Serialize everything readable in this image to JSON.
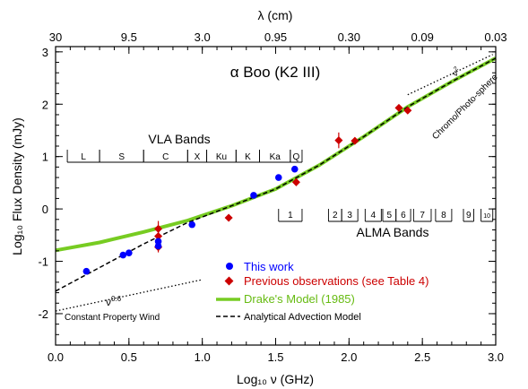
{
  "chart_data": {
    "type": "scatter",
    "title": "α Boo (K2 III)",
    "xlabel": "Log₁₀ ν (GHz)",
    "ylabel": "Log₁₀ Flux Density (mJy)",
    "top_axis_label": "λ (cm)",
    "xlim": [
      0.0,
      3.0
    ],
    "ylim": [
      -2.6,
      3.1
    ],
    "x_ticks": [
      0.0,
      0.5,
      1.0,
      1.5,
      2.0,
      2.5,
      3.0
    ],
    "x_tick_labels": [
      "0.0",
      "0.5",
      "1.0",
      "1.5",
      "2.0",
      "2.5",
      "3.0"
    ],
    "y_ticks": [
      -2,
      -1,
      0,
      1,
      2,
      3
    ],
    "y_tick_labels": [
      "-2",
      "-1",
      "0",
      "1",
      "2",
      "3"
    ],
    "top_ticks": [
      0.0,
      0.5,
      1.0,
      1.5,
      2.0,
      2.5,
      3.0
    ],
    "top_tick_labels": [
      "30",
      "9.5",
      "3.0",
      "0.95",
      "0.30",
      "0.09",
      "0.03"
    ],
    "series": [
      {
        "name": "This work",
        "kind": "points",
        "color": "#0000ff",
        "marker": "circle",
        "points": [
          [
            0.21,
            -1.19
          ],
          [
            0.46,
            -0.88
          ],
          [
            0.5,
            -0.84
          ],
          [
            0.7,
            -0.71
          ],
          [
            0.7,
            -0.62
          ],
          [
            0.93,
            -0.3
          ],
          [
            1.35,
            0.26
          ],
          [
            1.52,
            0.6
          ],
          [
            1.63,
            0.76
          ]
        ]
      },
      {
        "name": "Previous observations (see Table 4)",
        "kind": "points",
        "color": "#cc0000",
        "marker": "diamond",
        "points": [
          [
            0.7,
            -0.38
          ],
          [
            0.7,
            -0.52
          ],
          [
            0.7,
            -0.73
          ],
          [
            1.18,
            -0.17
          ],
          [
            1.64,
            0.51
          ],
          [
            1.93,
            1.31
          ],
          [
            2.04,
            1.3
          ],
          [
            2.34,
            1.93
          ],
          [
            2.4,
            1.88
          ]
        ],
        "errors": [
          0.15,
          0.08,
          0.1,
          0,
          0,
          0.15,
          0,
          0,
          0
        ]
      },
      {
        "name": "Drake's Model (1985)",
        "kind": "line",
        "color": "#77cc22",
        "style": "solid",
        "points": [
          [
            0.0,
            -0.79
          ],
          [
            0.3,
            -0.64
          ],
          [
            0.6,
            -0.44
          ],
          [
            0.9,
            -0.22
          ],
          [
            1.2,
            0.06
          ],
          [
            1.5,
            0.38
          ],
          [
            1.8,
            0.84
          ],
          [
            2.1,
            1.38
          ],
          [
            2.4,
            1.95
          ],
          [
            2.7,
            2.43
          ],
          [
            3.0,
            2.88
          ]
        ]
      },
      {
        "name": "Analytical Advection Model",
        "kind": "line",
        "color": "#000000",
        "style": "dashed",
        "points": [
          [
            0.0,
            -1.57
          ],
          [
            0.3,
            -1.12
          ],
          [
            0.6,
            -0.67
          ],
          [
            0.9,
            -0.26
          ],
          [
            1.2,
            0.06
          ],
          [
            1.5,
            0.38
          ],
          [
            1.8,
            0.84
          ],
          [
            2.1,
            1.38
          ],
          [
            2.4,
            1.95
          ],
          [
            2.7,
            2.43
          ],
          [
            3.0,
            2.88
          ]
        ]
      }
    ],
    "guide_lines": [
      {
        "label": "ν^0.6",
        "points": [
          [
            0.0,
            -1.95
          ],
          [
            1.0,
            -1.35
          ]
        ],
        "color": "#000000",
        "style": "dotted"
      },
      {
        "label": "ν^2",
        "points": [
          [
            2.4,
            2.18
          ],
          [
            2.98,
            2.95
          ]
        ],
        "color": "#000000",
        "style": "dotted"
      }
    ],
    "annotations": {
      "wind": "Constant Property Wind",
      "photosphere": "Chromo/Photo-sphere",
      "nu06_base": "ν",
      "nu06_sup": "0.6",
      "nu2_base": "ν",
      "nu2_sup": "2"
    },
    "vla": {
      "title": "VLA Bands",
      "bands": [
        {
          "label": "L",
          "x0": 0.08,
          "x1": 0.3
        },
        {
          "label": "S",
          "x0": 0.3,
          "x1": 0.6
        },
        {
          "label": "C",
          "x0": 0.6,
          "x1": 0.9
        },
        {
          "label": "X",
          "x0": 0.9,
          "x1": 1.03
        },
        {
          "label": "Ku",
          "x0": 1.03,
          "x1": 1.23
        },
        {
          "label": "K",
          "x0": 1.23,
          "x1": 1.39
        },
        {
          "label": "Ka",
          "x0": 1.39,
          "x1": 1.6
        },
        {
          "label": "Q",
          "x0": 1.6,
          "x1": 1.68
        }
      ]
    },
    "alma": {
      "title": "ALMA Bands",
      "bands": [
        {
          "label": "1",
          "x0": 1.52,
          "x1": 1.68
        },
        {
          "label": "2",
          "x0": 1.86,
          "x1": 1.95
        },
        {
          "label": "3",
          "x0": 1.95,
          "x1": 2.06
        },
        {
          "label": "4",
          "x0": 2.11,
          "x1": 2.22
        },
        {
          "label": "5",
          "x0": 2.23,
          "x1": 2.32
        },
        {
          "label": "6",
          "x0": 2.32,
          "x1": 2.42
        },
        {
          "label": "7",
          "x0": 2.44,
          "x1": 2.56
        },
        {
          "label": "8",
          "x0": 2.59,
          "x1": 2.7
        },
        {
          "label": "9",
          "x0": 2.78,
          "x1": 2.85
        },
        {
          "label": "10",
          "x0": 2.9,
          "x1": 2.98
        }
      ]
    },
    "legend_position": "bottom-right"
  }
}
